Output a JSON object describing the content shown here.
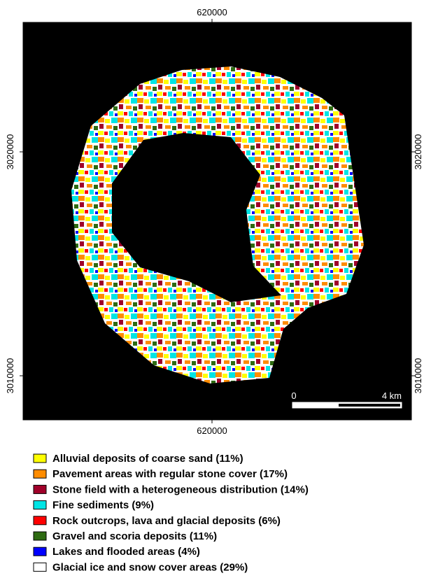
{
  "map": {
    "axes": {
      "top": "620000",
      "bottom": "620000",
      "left": [
        "3020000",
        "3010000"
      ],
      "right": [
        "3020000",
        "3010000"
      ]
    },
    "scale_bar": {
      "start": "0",
      "end": "4 km"
    },
    "legend": [
      {
        "label": "Alluvial deposits of coarse sand (11%)",
        "color": "#ffff00"
      },
      {
        "label": "Pavement areas with regular stone cover (17%)",
        "color": "#ff8c00"
      },
      {
        "label": "Stone field  with a heterogeneous distribution (14%)",
        "color": "#a0002a"
      },
      {
        "label": "Fine sediments (9%)",
        "color": "#00e5e5"
      },
      {
        "label": "Rock outcrops, lava and glacial deposits (6%)",
        "color": "#ff0000"
      },
      {
        "label": "Gravel and scoria deposits (11%)",
        "color": "#2e6b12"
      },
      {
        "label": "Lakes and flooded areas (4%)",
        "color": "#0000ff"
      },
      {
        "label": "Glacial ice and snow cover areas (29%)",
        "color": "#ffffff"
      }
    ]
  }
}
